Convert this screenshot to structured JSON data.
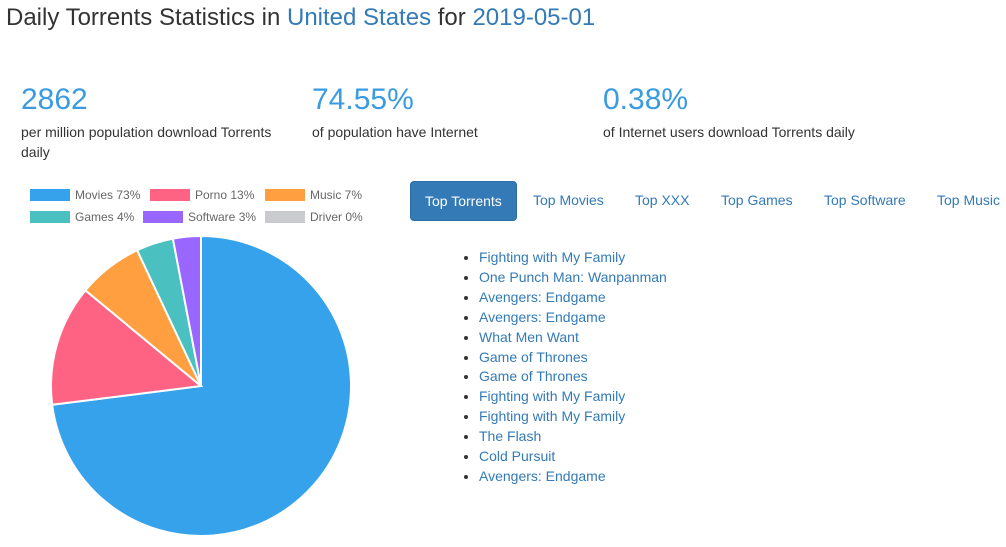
{
  "header": {
    "prefix": "Daily Torrents Statistics in",
    "country": "United States",
    "mid": "for",
    "date": "2019-05-01"
  },
  "stats": [
    {
      "value": "2862",
      "label": "per million population download Torrents daily"
    },
    {
      "value": "74.55%",
      "label": "of population have Internet"
    },
    {
      "value": "0.38%",
      "label": "of Internet users download Torrents daily"
    }
  ],
  "chart_data": {
    "type": "pie",
    "categories": [
      "Movies",
      "Porno",
      "Music",
      "Games",
      "Software",
      "Driver"
    ],
    "values": [
      73,
      13,
      7,
      4,
      3,
      0
    ],
    "legend_labels": [
      "Movies 73%",
      "Porno 13%",
      "Music 7%",
      "Games 4%",
      "Software 3%",
      "Driver 0%"
    ],
    "colors": [
      "#36a2eb",
      "#ff6384",
      "#ff9f40",
      "#4bc0c0",
      "#9966ff",
      "#c9cbcf"
    ],
    "legend": "top"
  },
  "tabs": [
    "Top Torrents",
    "Top Movies",
    "Top XXX",
    "Top Games",
    "Top Software",
    "Top Music"
  ],
  "active_tab": "Top Torrents",
  "torrents": [
    "Fighting with My Family",
    "One Punch Man: Wanpanman",
    "Avengers: Endgame",
    "Avengers: Endgame",
    "What Men Want",
    "Game of Thrones",
    "Game of Thrones",
    "Fighting with My Family",
    "Fighting with My Family",
    "The Flash",
    "Cold Pursuit",
    "Avengers: Endgame"
  ]
}
